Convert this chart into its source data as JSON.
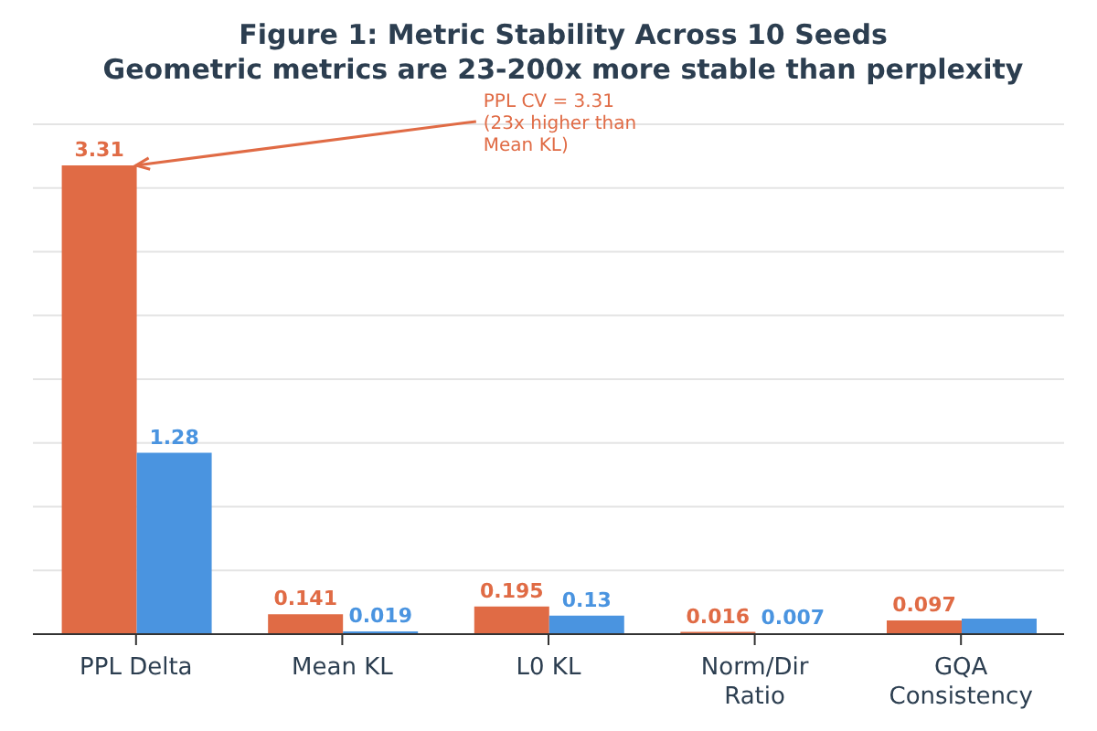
{
  "chart_data": {
    "type": "bar",
    "title": "Figure 1: Metric Stability Across 10 Seeds",
    "subtitle": "Geometric metrics are 23-200x more stable than perplexity",
    "categories": [
      "PPL Delta",
      "Mean KL",
      "L0 KL",
      "Norm/Dir\nRatio",
      "GQA\nConsistency"
    ],
    "series": [
      {
        "color": "#e06b45",
        "values": [
          3.31,
          0.141,
          0.195,
          0.016,
          0.097
        ],
        "value_labels": [
          "3.31",
          "0.141",
          "0.195",
          "0.016",
          "0.097"
        ]
      },
      {
        "color": "#4a94e0",
        "values": [
          1.28,
          0.019,
          0.13,
          0.007,
          0.11
        ],
        "value_labels": [
          "1.28",
          "0.019",
          "0.13",
          "0.007",
          null
        ]
      }
    ],
    "tick_labels": "x",
    "grid": "y",
    "annotations": [
      {
        "text": "PPL CV = 3.31\n(23x higher than\nMean KL)",
        "x": "PPL Delta",
        "y": 3.31
      }
    ]
  }
}
